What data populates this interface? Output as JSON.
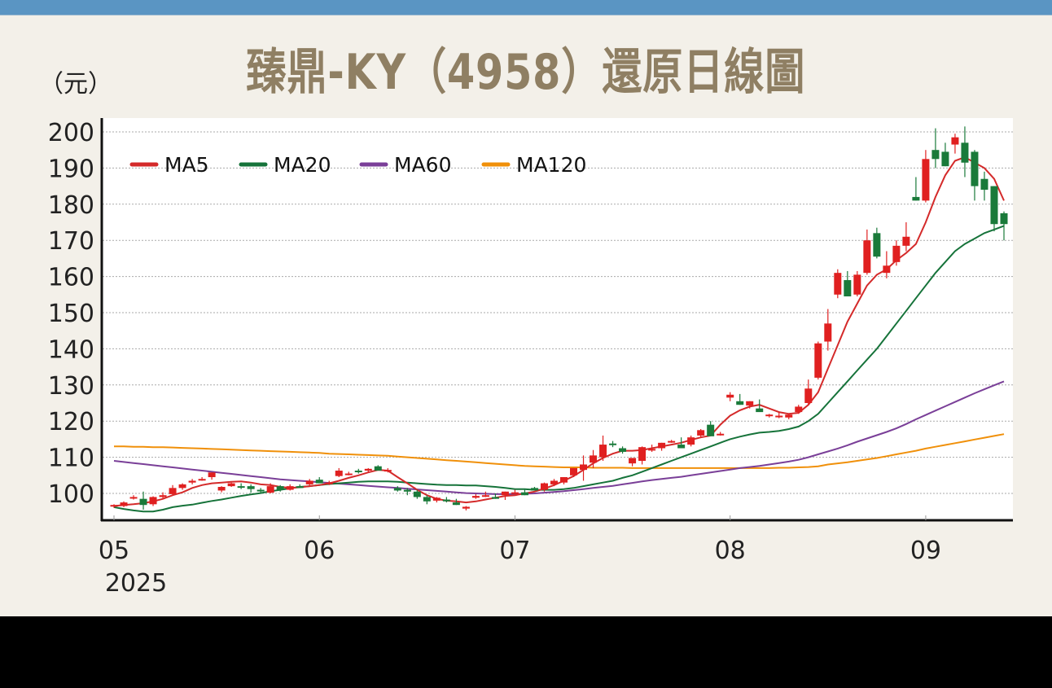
{
  "header": {
    "title": "臻鼎-KY（4958）還原日線圖",
    "unit_label": "（元）"
  },
  "colors": {
    "top_strip": "#5a95c3",
    "background": "#f3f0e9",
    "plot_bg": "#ffffff",
    "title": "#8f7f63",
    "up_candle": "#e02020",
    "down_candle": "#1a7a3a",
    "ma5": "#d42a2a",
    "ma20": "#16733a",
    "ma60": "#7a3f98",
    "ma120": "#f0900a",
    "grid": "#aaaaaa"
  },
  "chart_data": {
    "type": "candlestick",
    "title": "臻鼎-KY（4958）還原日線圖",
    "ylabel": "（元）",
    "xlabel": "",
    "ylim": [
      93,
      203
    ],
    "yticks": [
      100,
      110,
      120,
      130,
      140,
      150,
      160,
      170,
      180,
      190,
      200
    ],
    "grid": true,
    "legend_position": "top-left",
    "x_ticks": [
      {
        "label": "05",
        "sub": "2025",
        "index": 0
      },
      {
        "label": "06",
        "index": 21
      },
      {
        "label": "07",
        "index": 41
      },
      {
        "label": "08",
        "index": 63
      },
      {
        "label": "09",
        "index": 83
      }
    ],
    "legend": [
      {
        "name": "MA5",
        "color": "#d42a2a"
      },
      {
        "name": "MA20",
        "color": "#16733a"
      },
      {
        "name": "MA60",
        "color": "#7a3f98"
      },
      {
        "name": "MA120",
        "color": "#f0900a"
      }
    ],
    "candles": [
      [
        96.5,
        97.0,
        96.0,
        96.8
      ],
      [
        96.5,
        97.8,
        96.2,
        97.5
      ],
      [
        98.8,
        99.5,
        98.3,
        99.0
      ],
      [
        98.5,
        100.5,
        95.5,
        96.8
      ],
      [
        97.0,
        99.2,
        96.5,
        99.0
      ],
      [
        99.0,
        100.3,
        98.5,
        99.5
      ],
      [
        99.8,
        102.3,
        99.5,
        101.5
      ],
      [
        101.5,
        102.8,
        101.0,
        102.5
      ],
      [
        103.0,
        104.0,
        102.5,
        103.5
      ],
      [
        104.0,
        104.5,
        103.5,
        104.0
      ],
      [
        104.5,
        105.8,
        103.8,
        105.8
      ],
      [
        100.8,
        102.0,
        100.3,
        101.8
      ],
      [
        102.0,
        103.0,
        101.8,
        102.8
      ],
      [
        102.0,
        102.8,
        101.2,
        101.8
      ],
      [
        102.0,
        102.5,
        100.2,
        101.2
      ],
      [
        101.0,
        101.5,
        100.2,
        100.8
      ],
      [
        100.2,
        102.8,
        100.0,
        102.0
      ],
      [
        102.0,
        102.3,
        100.5,
        101.0
      ],
      [
        101.0,
        102.5,
        100.8,
        102.0
      ],
      [
        102.0,
        102.5,
        101.5,
        101.5
      ],
      [
        102.5,
        104.0,
        102.0,
        103.5
      ],
      [
        103.8,
        104.5,
        103.0,
        102.8
      ],
      [
        103.0,
        103.5,
        102.3,
        103.0
      ],
      [
        104.8,
        107.0,
        104.5,
        106.3
      ],
      [
        105.5,
        106.0,
        105.0,
        105.5
      ],
      [
        106.3,
        106.8,
        105.5,
        106.0
      ],
      [
        106.3,
        107.0,
        105.8,
        106.8
      ],
      [
        107.5,
        107.8,
        106.5,
        106.3
      ],
      [
        106.5,
        107.0,
        105.8,
        106.5
      ],
      [
        101.5,
        102.0,
        100.5,
        100.8
      ],
      [
        101.0,
        101.5,
        99.5,
        100.5
      ],
      [
        100.5,
        101.0,
        98.5,
        99.0
      ],
      [
        99.0,
        99.5,
        97.0,
        97.8
      ],
      [
        98.0,
        99.0,
        97.5,
        98.8
      ],
      [
        98.3,
        99.0,
        97.5,
        97.8
      ],
      [
        97.5,
        98.5,
        96.8,
        96.8
      ],
      [
        95.8,
        96.5,
        95.3,
        96.3
      ],
      [
        98.8,
        99.8,
        98.5,
        99.3
      ],
      [
        99.5,
        100.5,
        99.0,
        99.5
      ],
      [
        99.0,
        100.0,
        98.5,
        98.5
      ],
      [
        99.5,
        100.5,
        98.2,
        100.5
      ],
      [
        100.3,
        101.0,
        99.8,
        100.3
      ],
      [
        100.3,
        101.0,
        99.5,
        99.5
      ],
      [
        101.5,
        101.8,
        100.8,
        100.8
      ],
      [
        101.0,
        103.0,
        100.5,
        102.8
      ],
      [
        102.5,
        104.0,
        102.0,
        103.5
      ],
      [
        103.0,
        104.5,
        102.5,
        104.5
      ],
      [
        105.0,
        107.0,
        104.5,
        107.0
      ],
      [
        106.5,
        110.5,
        103.5,
        108.0
      ],
      [
        108.5,
        112.0,
        107.0,
        110.5
      ],
      [
        110.0,
        116.0,
        109.0,
        113.5
      ],
      [
        113.8,
        114.5,
        112.8,
        113.5
      ],
      [
        112.5,
        113.0,
        111.0,
        111.5
      ],
      [
        108.3,
        109.0,
        107.5,
        109.8
      ],
      [
        109.0,
        113.0,
        108.0,
        112.8
      ],
      [
        112.0,
        113.5,
        111.5,
        112.3
      ],
      [
        112.5,
        114.0,
        111.8,
        114.0
      ],
      [
        114.5,
        114.8,
        114.0,
        114.5
      ],
      [
        113.5,
        115.5,
        112.5,
        112.5
      ],
      [
        113.5,
        116.0,
        113.0,
        115.5
      ],
      [
        116.0,
        117.8,
        115.5,
        117.5
      ],
      [
        119.0,
        120.0,
        116.5,
        115.8
      ],
      [
        116.5,
        117.0,
        116.0,
        116.5
      ],
      [
        126.5,
        128.0,
        125.5,
        127.3
      ],
      [
        125.5,
        127.5,
        124.5,
        124.5
      ],
      [
        124.3,
        125.5,
        123.5,
        125.5
      ],
      [
        123.5,
        126.0,
        122.8,
        122.5
      ],
      [
        121.5,
        122.0,
        121.0,
        121.8
      ],
      [
        121.5,
        122.5,
        120.8,
        121.5
      ],
      [
        121.0,
        122.0,
        120.5,
        121.8
      ],
      [
        122.5,
        124.5,
        122.0,
        124.0
      ],
      [
        125.0,
        131.5,
        124.5,
        129.0
      ],
      [
        132.0,
        142.0,
        131.5,
        141.5
      ],
      [
        142.0,
        151.0,
        139.5,
        147.0
      ],
      [
        155.0,
        162.0,
        154.0,
        161.0
      ],
      [
        159.0,
        161.5,
        155.0,
        154.5
      ],
      [
        155.0,
        161.5,
        154.5,
        160.5
      ],
      [
        161.0,
        173.0,
        160.5,
        170.0
      ],
      [
        172.0,
        173.5,
        165.0,
        165.5
      ],
      [
        161.0,
        167.0,
        159.5,
        163.0
      ],
      [
        164.0,
        170.0,
        163.0,
        168.5
      ],
      [
        168.5,
        175.0,
        167.0,
        171.0
      ],
      [
        182.0,
        187.5,
        181.0,
        181.0
      ],
      [
        181.0,
        195.0,
        180.5,
        192.5
      ],
      [
        195.0,
        201.0,
        190.0,
        192.5
      ],
      [
        194.5,
        197.0,
        190.5,
        190.5
      ],
      [
        196.5,
        199.5,
        194.0,
        198.5
      ],
      [
        197.0,
        201.5,
        187.5,
        191.5
      ],
      [
        194.5,
        195.0,
        181.0,
        185.0
      ],
      [
        187.0,
        189.0,
        181.0,
        184.0
      ],
      [
        185.0,
        185.0,
        172.5,
        174.5
      ],
      [
        177.5,
        178.0,
        170.0,
        174.5
      ]
    ],
    "series": [
      {
        "name": "MA5",
        "values": [
          96.5,
          96.8,
          97.0,
          97.3,
          97.8,
          98.5,
          99.5,
          100.3,
          101.5,
          102.3,
          102.8,
          103.0,
          103.2,
          103.3,
          103.0,
          102.5,
          102.3,
          101.8,
          101.5,
          101.7,
          102.0,
          102.3,
          102.8,
          103.5,
          104.3,
          105.0,
          105.8,
          106.5,
          106.3,
          104.5,
          102.8,
          101.0,
          99.5,
          98.5,
          98.0,
          97.8,
          97.5,
          97.8,
          98.3,
          98.8,
          99.3,
          99.5,
          100.0,
          100.5,
          101.3,
          102.3,
          103.5,
          104.8,
          106.5,
          108.3,
          109.8,
          111.0,
          111.8,
          111.8,
          112.0,
          112.5,
          113.0,
          113.5,
          114.0,
          114.8,
          115.5,
          116.0,
          119.0,
          121.5,
          123.0,
          124.0,
          124.5,
          123.5,
          122.5,
          122.0,
          122.3,
          124.5,
          128.0,
          134.5,
          141.0,
          147.5,
          152.5,
          157.5,
          160.5,
          162.0,
          164.5,
          166.5,
          169.0,
          175.0,
          182.0,
          188.0,
          192.0,
          193.0,
          191.5,
          190.0,
          187.0,
          181.0
        ]
      },
      {
        "name": "MA20",
        "values": [
          96.2,
          95.7,
          95.3,
          95.0,
          95.0,
          95.5,
          96.2,
          96.6,
          96.9,
          97.4,
          97.9,
          98.3,
          98.8,
          99.3,
          99.7,
          100.1,
          100.6,
          101.0,
          101.4,
          101.8,
          102.0,
          102.3,
          102.6,
          102.8,
          103.0,
          103.2,
          103.3,
          103.3,
          103.3,
          103.2,
          103.0,
          102.8,
          102.6,
          102.4,
          102.3,
          102.3,
          102.2,
          102.2,
          102.0,
          101.8,
          101.5,
          101.2,
          101.2,
          101.0,
          101.0,
          101.0,
          101.2,
          101.5,
          102.0,
          102.5,
          103.0,
          103.5,
          104.3,
          105.0,
          106.0,
          107.0,
          108.0,
          109.0,
          110.0,
          111.0,
          112.0,
          113.0,
          114.0,
          115.0,
          115.7,
          116.3,
          116.8,
          117.0,
          117.3,
          117.8,
          118.5,
          120.0,
          122.0,
          125.0,
          128.0,
          131.0,
          134.0,
          137.0,
          140.0,
          143.5,
          147.0,
          150.5,
          154.0,
          157.5,
          161.0,
          164.0,
          167.0,
          169.0,
          170.5,
          172.0,
          173.0,
          174.0
        ]
      },
      {
        "name": "MA60",
        "values": [
          109.0,
          108.7,
          108.4,
          108.1,
          107.8,
          107.5,
          107.2,
          106.9,
          106.6,
          106.3,
          106.0,
          105.7,
          105.4,
          105.1,
          104.8,
          104.5,
          104.2,
          103.9,
          103.7,
          103.5,
          103.3,
          103.1,
          102.9,
          102.7,
          102.5,
          102.3,
          102.1,
          101.9,
          101.7,
          101.5,
          101.3,
          101.1,
          100.9,
          100.7,
          100.5,
          100.3,
          100.1,
          100.0,
          99.9,
          99.8,
          99.8,
          99.8,
          99.9,
          100.0,
          100.2,
          100.4,
          100.6,
          100.9,
          101.2,
          101.5,
          101.8,
          102.1,
          102.5,
          102.9,
          103.3,
          103.7,
          104.0,
          104.3,
          104.6,
          105.0,
          105.4,
          105.8,
          106.2,
          106.6,
          107.0,
          107.3,
          107.6,
          108.0,
          108.4,
          108.8,
          109.3,
          110.0,
          110.8,
          111.6,
          112.4,
          113.3,
          114.3,
          115.2,
          116.1,
          117.0,
          118.0,
          119.2,
          120.5,
          121.7,
          122.9,
          124.1,
          125.3,
          126.5,
          127.7,
          128.8,
          129.9,
          131.0
        ]
      },
      {
        "name": "MA120",
        "values": [
          113.0,
          113.0,
          112.9,
          112.9,
          112.8,
          112.8,
          112.7,
          112.6,
          112.5,
          112.4,
          112.3,
          112.2,
          112.1,
          112.0,
          111.9,
          111.8,
          111.7,
          111.6,
          111.5,
          111.4,
          111.3,
          111.2,
          111.0,
          110.9,
          110.8,
          110.7,
          110.6,
          110.5,
          110.4,
          110.2,
          110.0,
          109.8,
          109.6,
          109.4,
          109.2,
          109.0,
          108.8,
          108.6,
          108.4,
          108.2,
          108.0,
          107.8,
          107.6,
          107.5,
          107.4,
          107.3,
          107.2,
          107.2,
          107.2,
          107.1,
          107.1,
          107.1,
          107.1,
          107.0,
          107.0,
          107.0,
          107.0,
          107.0,
          107.0,
          107.0,
          107.0,
          107.0,
          107.0,
          107.0,
          107.0,
          107.0,
          107.0,
          107.0,
          107.1,
          107.1,
          107.2,
          107.3,
          107.5,
          108.0,
          108.3,
          108.6,
          109.0,
          109.4,
          109.8,
          110.3,
          110.8,
          111.3,
          111.8,
          112.4,
          112.9,
          113.4,
          113.9,
          114.4,
          114.9,
          115.4,
          115.9,
          116.4
        ]
      }
    ]
  }
}
